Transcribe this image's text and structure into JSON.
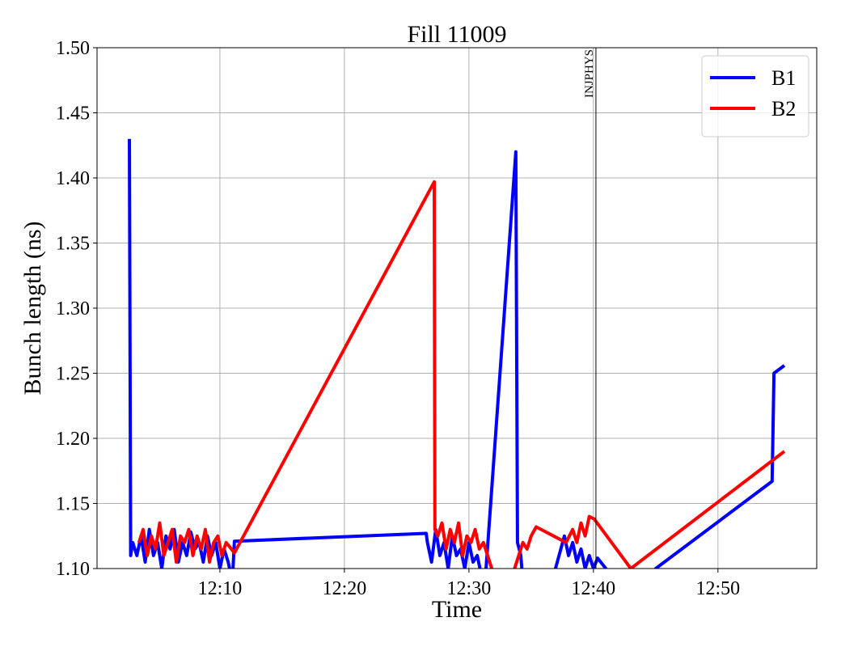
{
  "chart_data": {
    "type": "line",
    "title": "Fill 11009",
    "xlabel": "Time",
    "ylabel": "Bunch length (ns)",
    "xlim": [
      "12:00:08",
      "12:57:56"
    ],
    "xticks": [
      "12:10",
      "12:20",
      "12:30",
      "12:40",
      "12:50"
    ],
    "ylim": [
      1.1,
      1.5
    ],
    "yticks": [
      {
        "value": 1.1,
        "label": "1.10"
      },
      1.15,
      {
        "value": 1.2,
        "label": "1.20"
      },
      1.25,
      {
        "value": 1.3,
        "label": "1.30"
      },
      1.35,
      {
        "value": 1.4,
        "label": "1.40"
      },
      1.45,
      {
        "value": 1.5,
        "label": "1.50"
      }
    ],
    "grid": true,
    "legend": "upper right",
    "annotations": [
      {
        "x": "12:40:12",
        "text": "INJPHYS"
      }
    ],
    "series": [
      {
        "name": "B1",
        "color": "#0000ff",
        "x": [
          "12:02:44",
          "12:02:50",
          "12:03:00",
          "12:03:20",
          "12:03:40",
          "12:04:00",
          "12:04:20",
          "12:04:40",
          "12:05:00",
          "12:05:20",
          "12:05:40",
          "12:06:00",
          "12:06:20",
          "12:06:40",
          "12:07:00",
          "12:07:20",
          "12:07:40",
          "12:08:00",
          "12:08:20",
          "12:08:40",
          "12:09:00",
          "12:09:20",
          "12:09:40",
          "12:10:00",
          "12:10:20",
          "12:10:40",
          "12:11:00",
          "12:11:10",
          "12:26:34",
          "12:26:40",
          "12:27:00",
          "12:27:20",
          "12:27:40",
          "12:28:00",
          "12:28:20",
          "12:28:40",
          "12:29:00",
          "12:29:20",
          "12:29:40",
          "12:30:00",
          "12:30:20",
          "12:30:40",
          "12:31:00",
          "12:31:18",
          "12:33:46",
          "12:33:54",
          "12:34:10",
          "12:34:20",
          "12:34:30",
          "12:36:40",
          "12:37:40",
          "12:38:00",
          "12:38:20",
          "12:38:40",
          "12:39:00",
          "12:39:20",
          "12:39:40",
          "12:40:00",
          "12:40:20",
          "12:41:00",
          "12:41:30",
          "12:42:00",
          "12:44:40",
          "12:45:00",
          "12:54:21",
          "12:54:30",
          "12:55:20"
        ],
        "values": [
          1.43,
          1.11,
          1.12,
          1.11,
          1.125,
          1.105,
          1.13,
          1.11,
          1.12,
          1.1,
          1.125,
          1.115,
          1.13,
          1.105,
          1.12,
          1.11,
          1.128,
          1.115,
          1.12,
          1.105,
          1.125,
          1.11,
          1.12,
          1.1,
          1.115,
          1.105,
          1.09,
          1.121,
          1.127,
          1.12,
          1.105,
          1.13,
          1.11,
          1.12,
          1.1,
          1.125,
          1.11,
          1.115,
          1.1,
          1.12,
          1.105,
          1.11,
          1.095,
          1.09,
          1.42,
          1.12,
          1.11,
          1.09,
          null,
          1.09,
          1.125,
          1.11,
          1.12,
          1.105,
          1.115,
          1.1,
          1.11,
          1.1,
          1.108,
          1.1,
          1.09,
          null,
          1.09,
          1.1,
          1.167,
          1.25,
          1.256
        ]
      },
      {
        "name": "B2",
        "color": "#ff0000",
        "x": [
          "12:03:30",
          "12:03:50",
          "12:04:10",
          "12:04:30",
          "12:04:50",
          "12:05:10",
          "12:05:30",
          "12:05:50",
          "12:06:10",
          "12:06:30",
          "12:06:50",
          "12:07:10",
          "12:07:30",
          "12:07:50",
          "12:08:10",
          "12:08:30",
          "12:08:50",
          "12:09:10",
          "12:09:30",
          "12:09:50",
          "12:10:10",
          "12:10:30",
          "12:11:10",
          "12:27:13",
          "12:27:16",
          "12:27:30",
          "12:27:50",
          "12:28:10",
          "12:28:30",
          "12:28:50",
          "12:29:10",
          "12:29:30",
          "12:29:50",
          "12:30:10",
          "12:30:30",
          "12:30:50",
          "12:31:10",
          "12:31:30",
          "12:31:50",
          "12:32:00",
          "12:33:00",
          "12:33:20",
          "12:34:00",
          "12:34:20",
          "12:34:40",
          "12:35:00",
          "12:35:24",
          "12:37:48",
          "12:38:20",
          "12:38:40",
          "12:39:00",
          "12:39:20",
          "12:39:40",
          "12:40:04",
          "12:43:00",
          "12:55:20"
        ],
        "values": [
          1.12,
          1.13,
          1.11,
          1.125,
          1.115,
          1.135,
          1.11,
          1.12,
          1.13,
          1.105,
          1.125,
          1.12,
          1.13,
          1.11,
          1.125,
          1.115,
          1.13,
          1.105,
          1.12,
          1.125,
          1.11,
          1.12,
          1.112,
          1.397,
          1.13,
          1.125,
          1.135,
          1.115,
          1.13,
          1.12,
          1.135,
          1.11,
          1.125,
          1.12,
          1.13,
          1.115,
          1.12,
          1.11,
          1.1,
          1.09,
          null,
          1.09,
          1.11,
          1.12,
          1.115,
          1.125,
          1.132,
          1.12,
          1.13,
          1.12,
          1.135,
          1.125,
          1.14,
          1.138,
          1.1,
          1.19
        ]
      }
    ]
  }
}
